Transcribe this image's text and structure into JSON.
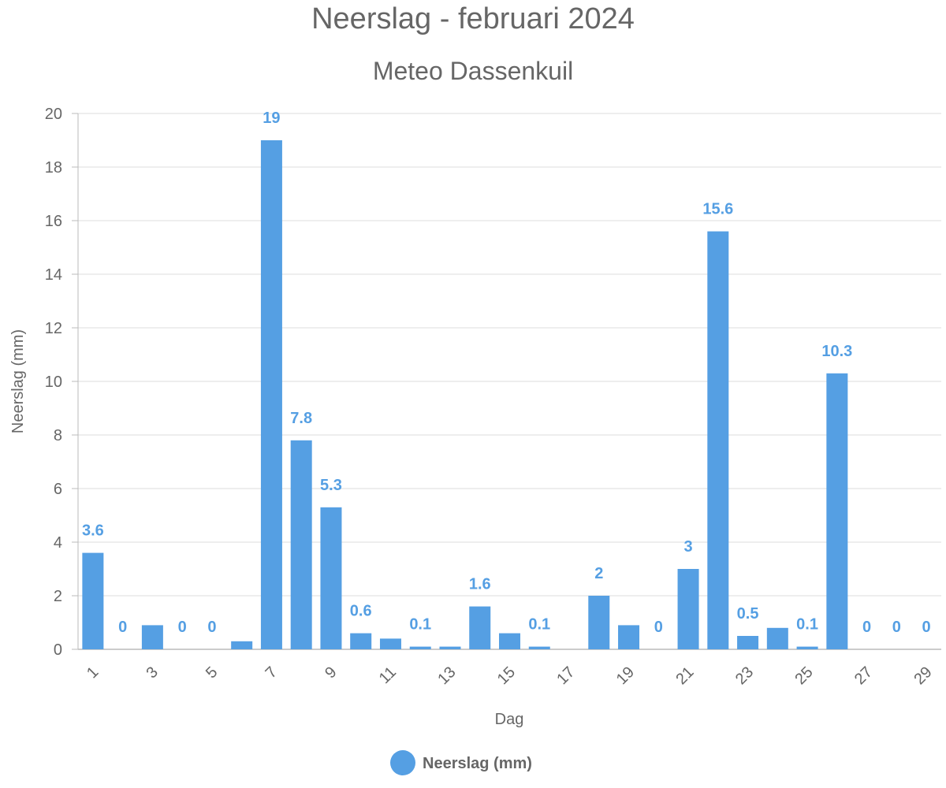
{
  "chart_data": {
    "type": "bar",
    "title": "Neerslag - februari 2024",
    "subtitle": "Meteo Dassenkuil",
    "xlabel": "Dag",
    "ylabel": "Neerslag (mm)",
    "ylim": [
      0,
      20
    ],
    "y_ticks": [
      "0",
      "2",
      "4",
      "6",
      "8",
      "10",
      "12",
      "14",
      "16",
      "18",
      "20"
    ],
    "categories": [
      "1",
      "2",
      "3",
      "4",
      "5",
      "6",
      "7",
      "8",
      "9",
      "10",
      "11",
      "12",
      "13",
      "14",
      "15",
      "16",
      "17",
      "18",
      "19",
      "20",
      "21",
      "22",
      "23",
      "24",
      "25",
      "26",
      "27",
      "28",
      "29"
    ],
    "x_tick_labels": [
      "1",
      "3",
      "5",
      "7",
      "9",
      "11",
      "13",
      "15",
      "17",
      "19",
      "21",
      "23",
      "25",
      "27",
      "29"
    ],
    "series": [
      {
        "name": "Neerslag (mm)",
        "color": "#559fe3",
        "values": [
          3.6,
          0,
          0.9,
          0,
          0,
          0.3,
          19,
          7.8,
          5.3,
          0.6,
          0.4,
          0.1,
          0.1,
          1.6,
          0.6,
          0.1,
          0,
          2,
          0.9,
          0,
          3,
          15.6,
          0.5,
          0.8,
          0.1,
          10.3,
          0,
          0,
          0
        ],
        "data_labels": [
          "3.6",
          "0",
          null,
          "0",
          "0",
          null,
          "19",
          "7.8",
          "5.3",
          "0.6",
          null,
          "0.1",
          null,
          "1.6",
          null,
          "0.1",
          null,
          "2",
          null,
          "0",
          "3",
          "15.6",
          "0.5",
          null,
          "0.1",
          "10.3",
          "0",
          "0",
          "0"
        ]
      }
    ],
    "grid": true,
    "legend_position": "bottom"
  }
}
